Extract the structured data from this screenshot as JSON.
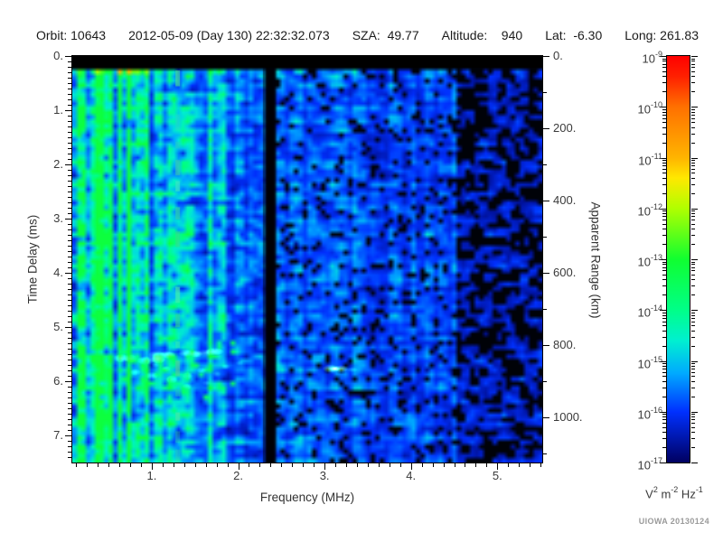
{
  "header": {
    "segments": [
      "Orbit: 10643",
      "2012-05-09 (Day 130) 22:32:32.073",
      "SZA:  49.77",
      "Altitude:    940",
      "Lat:  -6.30",
      "Long: 261.83"
    ]
  },
  "chart_data": {
    "type": "heatmap",
    "subtype": "radar-sounder-ionogram",
    "xlabel": "Frequency (MHz)",
    "ylabel_left": "Time Delay (ms)",
    "ylabel_right": "Apparent Range (km)",
    "x_range_mhz": [
      0.08,
      5.52
    ],
    "y_range_ms": [
      0,
      7.5
    ],
    "y_range_km": [
      0,
      1125
    ],
    "x_major_ticks_mhz": [
      1,
      2,
      3,
      4,
      5
    ],
    "x_tick_labels": [
      "1.",
      "2.",
      "3.",
      "4.",
      "5."
    ],
    "x_minor_step_mhz": 0.125,
    "y_major_ticks_ms": [
      0,
      1,
      2,
      3,
      4,
      5,
      6,
      7
    ],
    "y_tick_labels_ms": [
      "0.",
      "1.",
      "2.",
      "3.",
      "4.",
      "5.",
      "6.",
      "7."
    ],
    "y_minor_step_ms": 0.1,
    "y_major_ticks_km": [
      0,
      200,
      400,
      600,
      800,
      1000
    ],
    "y_tick_labels_km": [
      "0.",
      "200.",
      "400.",
      "600.",
      "800.",
      "1000."
    ],
    "y_minor_step_km": 100,
    "colorbar": {
      "scale": "log",
      "decade_exponents": [
        -9,
        -10,
        -11,
        -12,
        -13,
        -14,
        -15,
        -16,
        -17
      ],
      "units_parts": [
        {
          "base": "V",
          "exp": "2"
        },
        {
          "base": "m",
          "exp": "-2"
        },
        {
          "base": "Hz",
          "exp": "-1"
        }
      ],
      "stops": [
        {
          "t": 0.0,
          "c": "#000060"
        },
        {
          "t": 0.125,
          "c": "#0030FF"
        },
        {
          "t": 0.22,
          "c": "#00AAFF"
        },
        {
          "t": 0.3,
          "c": "#00F0D0"
        },
        {
          "t": 0.375,
          "c": "#00FF88"
        },
        {
          "t": 0.5,
          "c": "#10FF30"
        },
        {
          "t": 0.625,
          "c": "#B0FF00"
        },
        {
          "t": 0.7,
          "c": "#FFE800"
        },
        {
          "t": 0.75,
          "c": "#FFB400"
        },
        {
          "t": 0.875,
          "c": "#FF7000"
        },
        {
          "t": 0.95,
          "c": "#FF2000"
        },
        {
          "t": 1.0,
          "c": "#FF0000"
        }
      ]
    },
    "features": {
      "top_black_bar_ms": [
        0,
        0.22
      ],
      "bright_row_ms": 0.28,
      "green_dashed_line_mhz": 1.3,
      "dark_vertical_band_mhz": 2.36,
      "dark_region_start_mhz": 4.55,
      "echo_trace": {
        "freq_start_mhz": 0.63,
        "freq_end_mhz": 1.82,
        "delay_ms": 5.6
      },
      "echo_spot": {
        "freq_mhz": 3.15,
        "delay_ms": 5.77
      }
    },
    "credit": "UIOWA 20130124"
  },
  "layout_colors": {
    "background": "#FFFFFF",
    "axis": "#000000",
    "tick_text": "#3A3A3A",
    "header_text": "#1B1B1B",
    "credit_text": "#9A9A9A"
  }
}
